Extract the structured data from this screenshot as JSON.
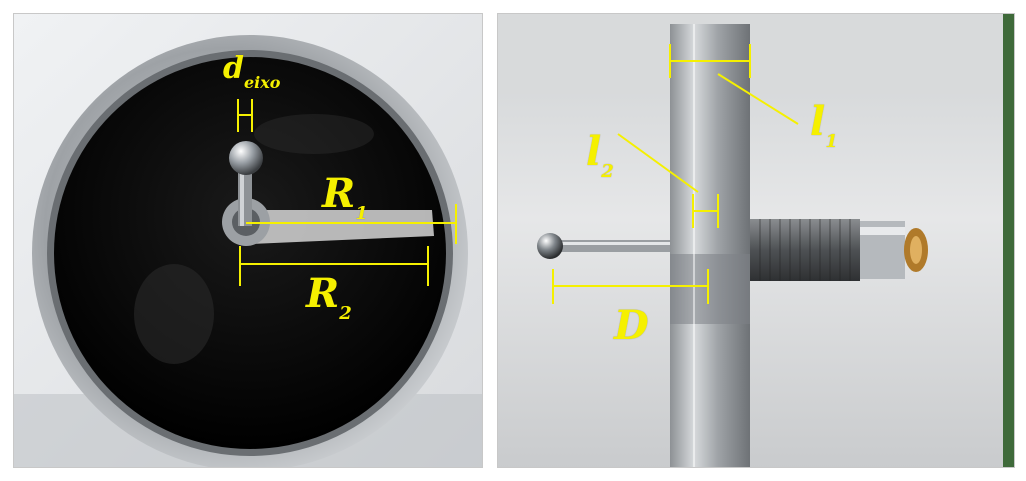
{
  "figure": {
    "left_photo": {
      "description_icon": "disc-top-view-photo",
      "labels": {
        "d_eixo": {
          "main": "d",
          "sub": "eixo"
        },
        "R1": {
          "main": "R",
          "sub": "1"
        },
        "R2": {
          "main": "R",
          "sub": "2"
        }
      }
    },
    "right_photo": {
      "description_icon": "disc-side-view-photo",
      "labels": {
        "l1": {
          "main": "l",
          "sub": "1"
        },
        "l2": {
          "main": "l",
          "sub": "2"
        },
        "D": {
          "main": "D"
        }
      }
    },
    "colors": {
      "annotation": "#f5f000",
      "disc_face": "#050505",
      "metal": "#b8bcc0",
      "background_left": "#eaecee",
      "background_right": "#dcdcdc"
    }
  }
}
